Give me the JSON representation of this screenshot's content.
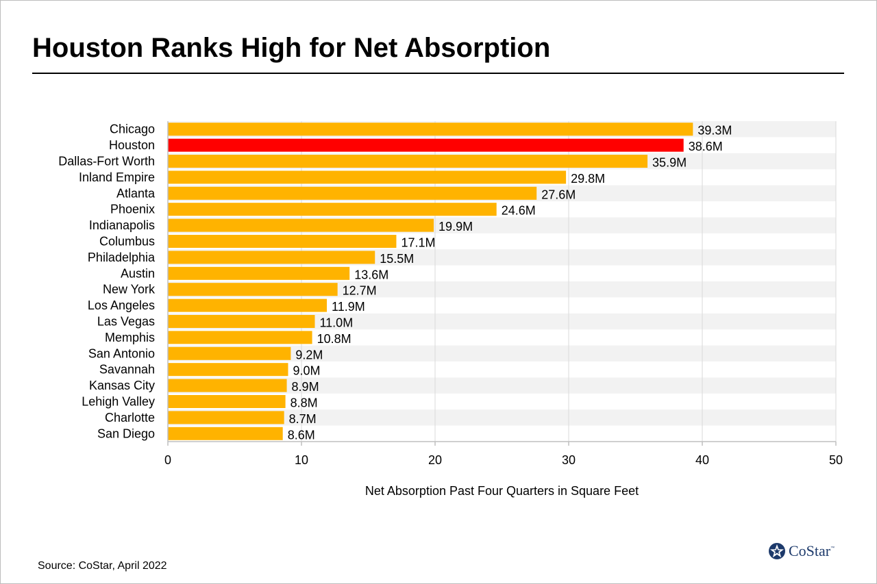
{
  "header": {
    "title": "Houston Ranks High for Net Absorption"
  },
  "footer": {
    "source": "Source: CoStar, April 2022",
    "logo_text": "CoStar",
    "logo_tm": "™"
  },
  "colors": {
    "bar": "#FFB300",
    "highlight": "#FF0000",
    "stripe": "#F2F2F2",
    "grid": "#D9D9D9",
    "axis": "#BFBFBF",
    "logo": "#1D3A6B"
  },
  "chart_data": {
    "type": "bar",
    "orientation": "horizontal",
    "categories": [
      "Chicago",
      "Houston",
      "Dallas-Fort Worth",
      "Inland Empire",
      "Atlanta",
      "Phoenix",
      "Indianapolis",
      "Columbus",
      "Philadelphia",
      "Austin",
      "New York",
      "Los Angeles",
      "Las Vegas",
      "Memphis",
      "San Antonio",
      "Savannah",
      "Kansas City",
      "Lehigh Valley",
      "Charlotte",
      "San Diego"
    ],
    "values": [
      39.3,
      38.6,
      35.9,
      29.8,
      27.6,
      24.6,
      19.9,
      17.1,
      15.5,
      13.6,
      12.7,
      11.9,
      11.0,
      10.8,
      9.2,
      9.0,
      8.9,
      8.8,
      8.7,
      8.6
    ],
    "labels": [
      "39.3M",
      "38.6M",
      "35.9M",
      "29.8M",
      "27.6M",
      "24.6M",
      "19.9M",
      "17.1M",
      "15.5M",
      "13.6M",
      "12.7M",
      "11.9M",
      "11.0M",
      "10.8M",
      "9.2M",
      "9.0M",
      "8.9M",
      "8.8M",
      "8.7M",
      "8.6M"
    ],
    "highlight": "Houston",
    "xlabel": "Net Absorption Past Four Quarters in Square Feet",
    "ylabel": "",
    "xlim": [
      0,
      50
    ],
    "xticks": [
      0,
      10,
      20,
      30,
      40,
      50
    ],
    "xtick_labels": [
      "0",
      "10",
      "20",
      "30",
      "40",
      "50"
    ],
    "grid": true,
    "legend": "none"
  }
}
